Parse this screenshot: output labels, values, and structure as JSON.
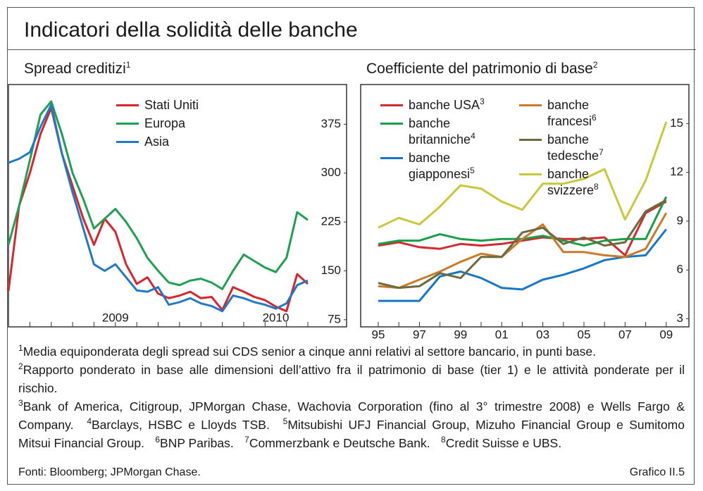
{
  "title": "Indicatori della solidità delle banche",
  "chart_data": [
    {
      "type": "line",
      "title": "Spread creditizi",
      "title_note": "1",
      "categories": [
        null,
        null,
        null,
        null,
        null,
        null,
        null,
        null,
        null,
        null,
        "2009",
        null,
        null,
        null,
        null,
        null,
        null,
        null,
        null,
        null,
        null,
        null,
        null,
        null,
        null,
        "2010",
        null,
        null,
        null
      ],
      "series": [
        {
          "name": "Stati Uniti",
          "color": "#d7262b",
          "values": [
            119,
            250,
            300,
            360,
            400,
            330,
            280,
            230,
            190,
            230,
            210,
            160,
            130,
            140,
            115,
            108,
            112,
            118,
            108,
            110,
            90,
            125,
            118,
            110,
            105,
            95,
            88,
            145,
            130
          ]
        },
        {
          "name": "Europa",
          "color": "#1fa050",
          "values": [
            190,
            250,
            320,
            390,
            410,
            360,
            300,
            260,
            215,
            230,
            245,
            225,
            200,
            170,
            150,
            132,
            128,
            135,
            138,
            132,
            122,
            150,
            175,
            165,
            155,
            148,
            170,
            240,
            228
          ]
        },
        {
          "name": "Asia",
          "color": "#1f78c8",
          "values": [
            316,
            322,
            332,
            371,
            405,
            330,
            270,
            215,
            160,
            150,
            160,
            140,
            120,
            118,
            125,
            98,
            102,
            108,
            100,
            96,
            88,
            112,
            108,
            102,
            98,
            92,
            100,
            128,
            135
          ]
        }
      ],
      "ylim": [
        64,
        436
      ],
      "yticks": [
        75,
        150,
        225,
        300,
        375
      ],
      "grid": false
    },
    {
      "type": "line",
      "title": "Coefficiente del patrimonio di base",
      "title_note": "2",
      "categories": [
        "95",
        null,
        "97",
        null,
        "99",
        null,
        "01",
        null,
        "03",
        null,
        "05",
        null,
        "07",
        null,
        "09"
      ],
      "series": [
        {
          "name": "banche USA",
          "note": "3",
          "color": "#d22a2e",
          "values": [
            7.5,
            7.7,
            7.4,
            7.3,
            7.6,
            7.5,
            7.6,
            7.8,
            8.0,
            7.9,
            7.9,
            8.0,
            6.9,
            9.5,
            10.2
          ]
        },
        {
          "name": "banche britanniche",
          "note": "4",
          "color": "#16a04a",
          "values": [
            7.6,
            7.8,
            7.8,
            8.2,
            7.9,
            7.8,
            7.9,
            7.9,
            8.1,
            7.8,
            7.5,
            7.8,
            7.9,
            7.9,
            10.5
          ]
        },
        {
          "name": "banche giapponesi",
          "note": "5",
          "color": "#1577c8",
          "values": [
            4.1,
            4.1,
            4.1,
            5.6,
            5.9,
            5.5,
            4.9,
            4.8,
            5.4,
            5.7,
            6.1,
            6.6,
            6.8,
            6.9,
            8.5
          ]
        },
        {
          "name": "banche francesi",
          "note": "6",
          "color": "#c97a2a",
          "values": [
            5.0,
            4.9,
            5.4,
            5.9,
            6.5,
            7.0,
            6.8,
            7.9,
            8.8,
            7.1,
            7.1,
            6.9,
            6.8,
            7.3,
            9.5
          ]
        },
        {
          "name": "banche tedesche",
          "note": "7",
          "color": "#6b6b3d",
          "values": [
            5.2,
            4.9,
            5.0,
            5.8,
            5.5,
            6.8,
            6.8,
            8.3,
            8.6,
            7.6,
            8.0,
            7.5,
            7.7,
            9.6,
            10.3
          ]
        },
        {
          "name": "banche svizzere",
          "note": "8",
          "color": "#c8c83a",
          "values": [
            8.6,
            9.2,
            8.8,
            9.9,
            11.2,
            11.0,
            10.2,
            9.7,
            11.3,
            11.3,
            11.6,
            12.2,
            9.1,
            11.5,
            15.1
          ]
        }
      ],
      "ylim": [
        2.5,
        17.4
      ],
      "yticks": [
        3,
        6,
        9,
        12,
        15
      ],
      "grid": false
    }
  ],
  "footnotes": [
    {
      "mark": "1",
      "text": "Media equiponderata degli spread sui CDS senior a cinque anni relativi al settore bancario, in punti base."
    },
    {
      "mark": "2",
      "text": "Rapporto ponderato in base alle dimensioni dell’attivo fra il patrimonio di base (tier 1) e le attività ponderate per il rischio."
    },
    {
      "mark": "3",
      "text": "Bank of America, Citigroup, JPMorgan Chase, Wachovia Corporation (fino al 3° trimestre 2008) e Wells Fargo & Company."
    },
    {
      "mark": "4",
      "text": "Barclays, HSBC e Lloyds TSB."
    },
    {
      "mark": "5",
      "text": "Mitsubishi UFJ Financial Group, Mizuho Financial Group e Sumitomo Mitsui Financial Group."
    },
    {
      "mark": "6",
      "text": "BNP Paribas."
    },
    {
      "mark": "7",
      "text": "Commerzbank e Deutsche Bank."
    },
    {
      "mark": "8",
      "text": "Credit Suisse e UBS."
    }
  ],
  "source": "Fonti: Bloomberg; JPMorgan Chase.",
  "figure_label": "Grafico II.5"
}
